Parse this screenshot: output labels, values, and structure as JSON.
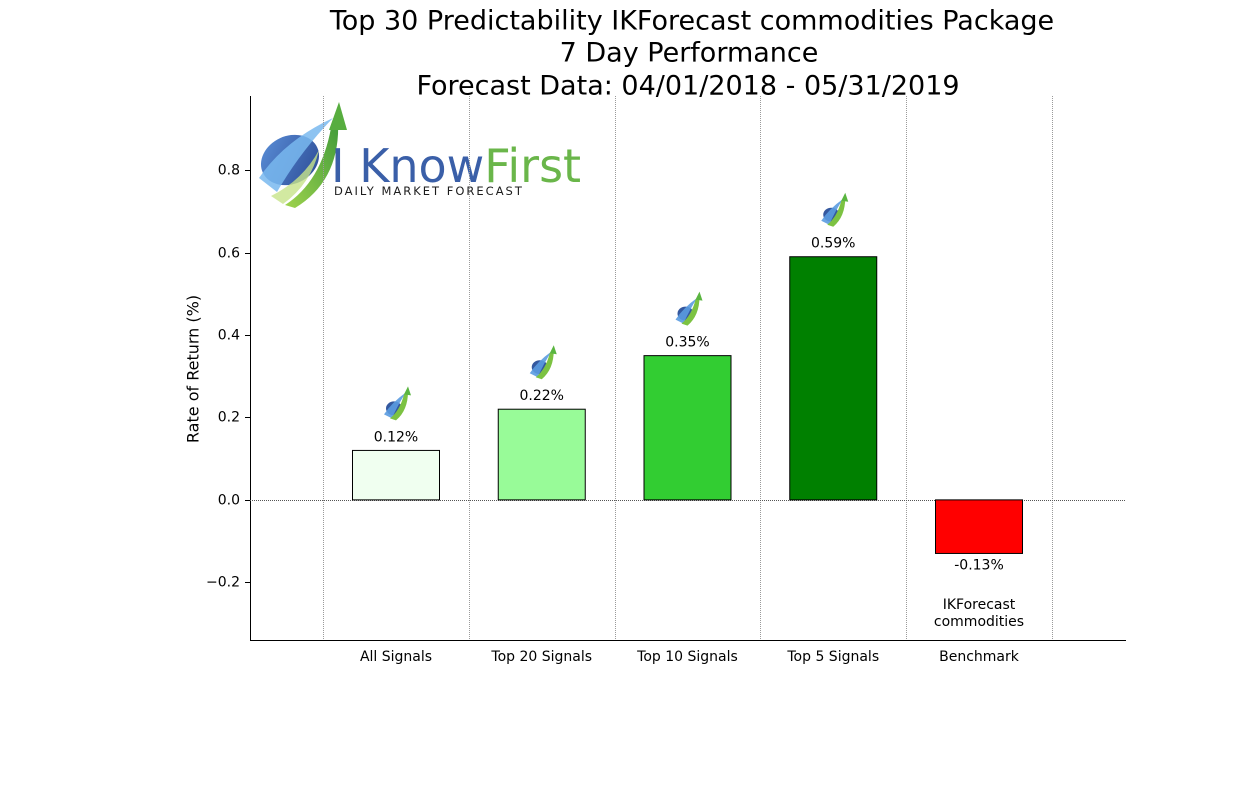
{
  "chart_data": {
    "type": "bar",
    "title": [
      "Top 30 Predictability IKForecast commodities Package",
      "7 Day Performance",
      "Forecast Data: 04/01/2018 - 05/31/2019"
    ],
    "ylabel": "Rate of Return (%)",
    "xlabel": "",
    "categories": [
      "All Signals",
      "Top 20 Signals",
      "Top 10 Signals",
      "Top 5 Signals",
      "Benchmark"
    ],
    "values": [
      0.12,
      0.22,
      0.35,
      0.59,
      -0.13
    ],
    "data_labels": [
      "0.12%",
      "0.22%",
      "0.35%",
      "0.59%",
      "-0.13%"
    ],
    "bar_colors": [
      "#f0fff0",
      "#98fb98",
      "#32cd32",
      "#008000",
      "#ff0000"
    ],
    "benchmark_annotation": [
      "IKForecast",
      "commodities"
    ],
    "ylim": [
      -0.34,
      0.98
    ],
    "yticks": [
      -0.2,
      0.0,
      0.2,
      0.4,
      0.6,
      0.8
    ],
    "ytick_labels": [
      "−0.2",
      "0.0",
      "0.2",
      "0.4",
      "0.6",
      "0.8"
    ],
    "grid": "vertical dotted",
    "legend": "none"
  },
  "logo": {
    "brand_prefix": "I Know",
    "brand_suffix": "First",
    "tagline": "Daily Market Forecast",
    "colors": {
      "blue": "#3a5fa8",
      "green": "#6ab64a"
    }
  }
}
